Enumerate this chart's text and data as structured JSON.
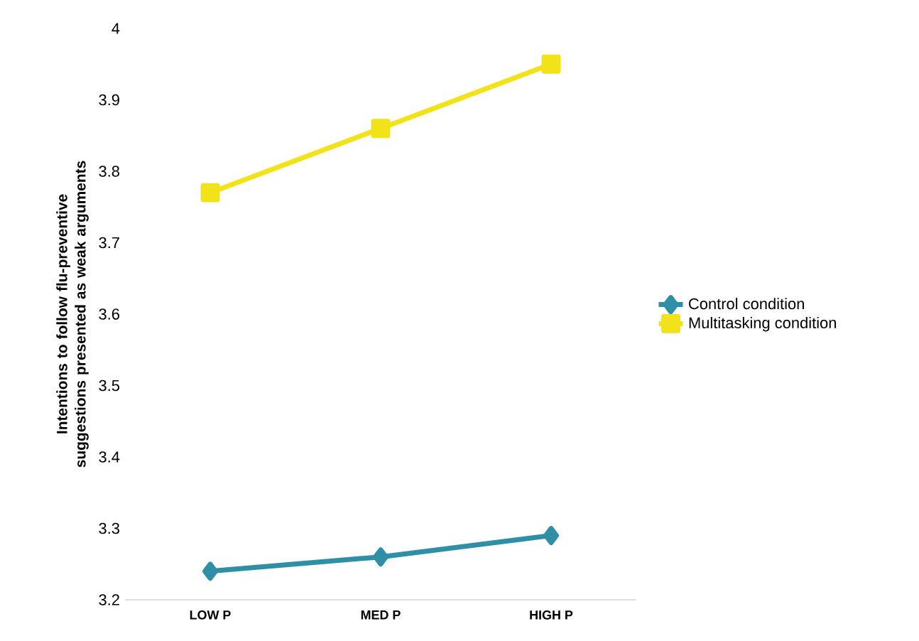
{
  "chart_data": {
    "type": "line",
    "ylabel": "Intentions to follow flu-preventive suggestions presented as weak arguments",
    "categories": [
      "LOW P",
      "MED P",
      "HIGH P"
    ],
    "series": [
      {
        "name": "Control condition",
        "color": "#2e8fa6",
        "values": [
          3.24,
          3.26,
          3.29
        ],
        "marker": "diamond"
      },
      {
        "name": "Multitasking condition",
        "color": "#f2e21a",
        "values": [
          3.77,
          3.86,
          3.95
        ],
        "marker": "square"
      }
    ],
    "ylim": [
      3.2,
      4
    ],
    "yticks": [
      3.2,
      3.3,
      3.4,
      3.5,
      3.6,
      3.7,
      3.8,
      3.9,
      4
    ],
    "legend": "right",
    "grid": false
  }
}
